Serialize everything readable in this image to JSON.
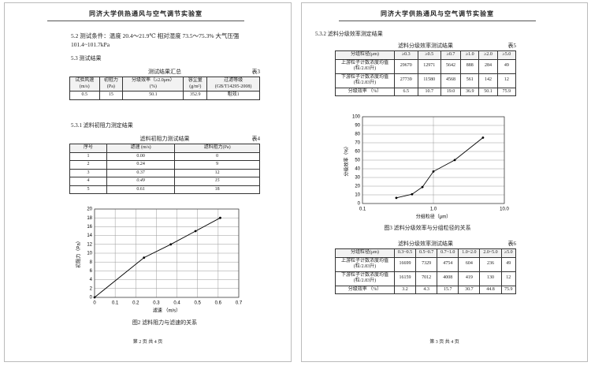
{
  "header": "同济大学供热通风与空气调节实验室",
  "page1": {
    "conditions": "5.2 测试条件：温度 20.4～21.9℃ 相对湿度 73.5～75.3% 大气压强 101.4~101.7kPa",
    "section": "5.3 测试结果",
    "table3": {
      "title": "测试结果汇总",
      "label": "表3",
      "header": [
        "试验风速\n(m/s)",
        "初阻力\n(Pa)",
        "分级效率（≥2.0μm）\n(%)",
        "容尘量\n(g/m²)",
        "过滤等级\n(GB/T14295-2008)"
      ],
      "rows": [
        [
          "0.5",
          "15",
          "50.1",
          "352.9",
          "粗效1"
        ]
      ]
    },
    "subsection": "5.3.1 滤料初阻力测定结果",
    "table4": {
      "title": "滤料初阻力测试结果",
      "label": "表4",
      "header": [
        "序号",
        "滤速 (m/s)",
        "滤料阻力(Pa)"
      ],
      "rows": [
        [
          "1",
          "0.00",
          "0"
        ],
        [
          "2",
          "0.24",
          "9"
        ],
        [
          "3",
          "0.37",
          "12"
        ],
        [
          "4",
          "0.49",
          "15"
        ],
        [
          "5",
          "0.61",
          "18"
        ]
      ]
    },
    "chart": {
      "type": "line",
      "x": [
        0,
        0.24,
        0.37,
        0.49,
        0.61
      ],
      "values": [
        0,
        9,
        12,
        15,
        18
      ],
      "xlim": [
        0,
        0.7
      ],
      "ylim": [
        0,
        20
      ],
      "xticks": [
        0,
        0.1,
        0.2,
        0.3,
        0.4,
        0.5,
        0.6,
        0.7
      ],
      "yticks": [
        0,
        2,
        4,
        6,
        8,
        10,
        12,
        14,
        16,
        18,
        20
      ],
      "xlabel": "滤速 （m/s）",
      "ylabel": "初阻力（Pa）",
      "color": "#000000",
      "grid": true
    },
    "caption": "图2 滤料阻力与滤速的关系",
    "footer": "第 2 页 共 4 页"
  },
  "page2": {
    "subsection": "5.3.2 滤料分级效率测定结果",
    "table5": {
      "title": "滤料分级效率测试结果",
      "label": "表5",
      "header": [
        "分组粒径(μm)",
        "≥0.3",
        "≥0.5",
        "≥0.7",
        "≥1.0",
        "≥2.0",
        "≥5.0"
      ],
      "rows": [
        [
          "上游粒子计数浓度均值\n(粒/2.83升)",
          "29670",
          "12971",
          "5642",
          "888",
          "284",
          "49"
        ],
        [
          "下游粒子计数浓度均值\n(粒/2.83升)",
          "27739",
          "11580",
          "4568",
          "561",
          "142",
          "12"
        ],
        [
          "分级效率 （%）",
          "6.5",
          "10.7",
          "19.0",
          "36.9",
          "50.1",
          "75.9"
        ]
      ]
    },
    "chart": {
      "type": "line",
      "x": [
        0.3,
        0.5,
        0.7,
        1.0,
        2.0,
        5.0
      ],
      "values": [
        6.5,
        10.7,
        19.0,
        36.9,
        50.1,
        75.9
      ],
      "xscale": "log",
      "xlim": [
        0.1,
        10
      ],
      "ylim": [
        0,
        100
      ],
      "xticks": [
        0.1,
        {
          "value": 1,
          "label": "1.0"
        },
        {
          "value": 10,
          "label": "10.0"
        }
      ],
      "yticks": [
        0,
        10,
        20,
        30,
        40,
        50,
        60,
        70,
        80,
        90,
        100
      ],
      "xlabel": "分组粒径（μm）",
      "ylabel": "分级效率（%）",
      "color": "#000000",
      "grid": true
    },
    "caption": "图3 滤料分级效率与分组粒径的关系",
    "table6": {
      "title": "滤料分级效率测试结果",
      "label": "表6",
      "header": [
        "分组粒径(μm)",
        "0.3~0.5",
        "0.5~0.7",
        "0.7~1.0",
        "1.0~2.0",
        "2.0~5.0",
        "≥5.0"
      ],
      "rows": [
        [
          "上游粒子计数浓度均值\n(粒/2.83升)",
          "16699",
          "7329",
          "4754",
          "604",
          "236",
          "49"
        ],
        [
          "下游粒子计数浓度均值\n(粒/2.83升)",
          "16159",
          "7012",
          "4008",
          "419",
          "130",
          "12"
        ],
        [
          "分级效率 （%）",
          "3.2",
          "4.3",
          "15.7",
          "30.7",
          "44.8",
          "75.9"
        ]
      ]
    },
    "footer": "第 3 页 共 4 页"
  }
}
